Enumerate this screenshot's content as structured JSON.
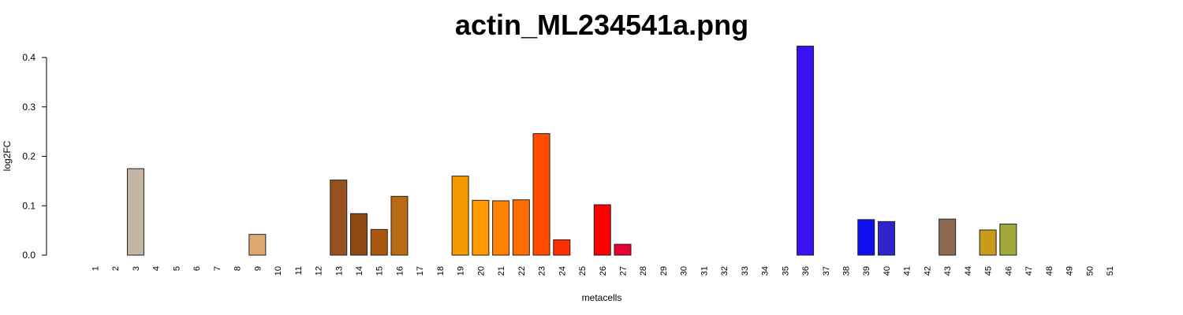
{
  "chart_data": {
    "type": "bar",
    "title": "actin_ML234541a.png",
    "xlabel": "metacells",
    "ylabel": "log2FC",
    "ylim": [
      0,
      0.4
    ],
    "yticks": [
      "0.0",
      "0.1",
      "0.2",
      "0.3",
      "0.4"
    ],
    "categories": [
      "1",
      "2",
      "3",
      "4",
      "5",
      "6",
      "7",
      "8",
      "9",
      "10",
      "11",
      "12",
      "13",
      "14",
      "15",
      "16",
      "17",
      "18",
      "19",
      "20",
      "21",
      "22",
      "23",
      "24",
      "25",
      "26",
      "27",
      "28",
      "29",
      "30",
      "31",
      "32",
      "33",
      "34",
      "35",
      "36",
      "37",
      "38",
      "39",
      "40",
      "41",
      "42",
      "43",
      "44",
      "45",
      "46",
      "47",
      "48",
      "49",
      "50",
      "51"
    ],
    "values": [
      0,
      0,
      0.175,
      0,
      0,
      0,
      0,
      0,
      0.042,
      0,
      0,
      0,
      0.152,
      0.084,
      0.052,
      0.119,
      0,
      0,
      0.16,
      0.111,
      0.11,
      0.112,
      0.246,
      0.031,
      0,
      0.102,
      0.022,
      0,
      0,
      0,
      0,
      0,
      0,
      0,
      0,
      0.423,
      0,
      0,
      0.072,
      0.068,
      0,
      0,
      0.073,
      0,
      0.051,
      0.063,
      0,
      0,
      0,
      0,
      0
    ],
    "colors": [
      "#c4b5a5",
      "#c4b5a5",
      "#c4b5a5",
      "#c4b5a5",
      "#c4b5a5",
      "#c4b5a5",
      "#c4b5a5",
      "#c4b5a5",
      "#dfaa72",
      "#c4b5a5",
      "#c4b5a5",
      "#c4b5a5",
      "#94511e",
      "#8f480f",
      "#a8590f",
      "#b86b10",
      "#c4b5a5",
      "#c4b5a5",
      "#f29a00",
      "#ff9b00",
      "#ff8200",
      "#ff6c00",
      "#ff4a00",
      "#ff2f00",
      "#c4b5a5",
      "#ff0000",
      "#e80030",
      "#c4b5a5",
      "#c4b5a5",
      "#c4b5a5",
      "#c4b5a5",
      "#c4b5a5",
      "#c4b5a5",
      "#c4b5a5",
      "#c4b5a5",
      "#3a10f5",
      "#c4b5a5",
      "#c4b5a5",
      "#1010ee",
      "#3024cc",
      "#c4b5a5",
      "#c4b5a5",
      "#8f6a52",
      "#c4b5a5",
      "#c89b1a",
      "#a2a83a",
      "#c4b5a5",
      "#c4b5a5",
      "#c4b5a5",
      "#c4b5a5",
      "#c4b5a5"
    ],
    "grid": false,
    "legend": "none"
  }
}
